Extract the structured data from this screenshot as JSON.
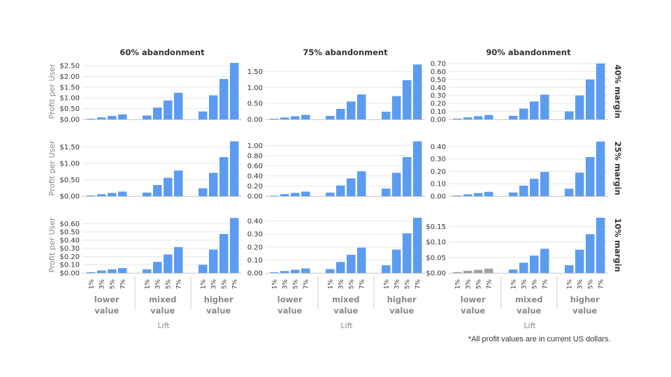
{
  "colors": {
    "bar": "#5b9cf0",
    "bar_gray": "#a0a0a0",
    "grid": "#e6e6e6",
    "axis_text": "#333333",
    "label_text": "#888888"
  },
  "ylabel": "Profit per User",
  "xlabel": "Lift",
  "footnote": "*All profit values are in current US dollars.",
  "chart_data": {
    "type": "bar",
    "layout": "3x3 facet grid",
    "columns": [
      "60% abandonment",
      "75% abandonment",
      "90% abandonment"
    ],
    "rows": [
      "40% margin",
      "25% margin",
      "10% margin"
    ],
    "groups": [
      "lower value",
      "mixed value",
      "higher value"
    ],
    "categories": [
      "1%",
      "3%",
      "5%",
      "7%"
    ],
    "xlabel": "Lift",
    "ylabel": "Profit per User",
    "panels": [
      {
        "row": 0,
        "col": 0,
        "ylim": [
          0,
          2.6
        ],
        "ticks": [
          "$0.00",
          "$0.50",
          "$1.00",
          "$1.50",
          "$2.00",
          "$2.50"
        ],
        "tick_values": [
          0,
          0.5,
          1,
          1.5,
          2,
          2.5
        ],
        "values": [
          [
            0.03,
            0.09,
            0.16,
            0.23
          ],
          [
            0.18,
            0.55,
            0.88,
            1.24
          ],
          [
            0.37,
            1.12,
            1.88,
            2.63
          ]
        ]
      },
      {
        "row": 0,
        "col": 1,
        "ylim": [
          0,
          1.75
        ],
        "ticks": [
          "0.00",
          "0.50",
          "1.00",
          "1.50"
        ],
        "tick_values": [
          0,
          0.5,
          1,
          1.5
        ],
        "values": [
          [
            0.02,
            0.06,
            0.1,
            0.14
          ],
          [
            0.11,
            0.33,
            0.56,
            0.78
          ],
          [
            0.24,
            0.73,
            1.23,
            1.72
          ]
        ]
      },
      {
        "row": 0,
        "col": 2,
        "ylim": [
          0,
          0.7
        ],
        "ticks": [
          "0.00",
          "0.10",
          "0.20",
          "0.30",
          "0.40",
          "0.50",
          "0.60",
          "0.70"
        ],
        "tick_values": [
          0,
          0.1,
          0.2,
          0.3,
          0.4,
          0.5,
          0.6,
          0.7
        ],
        "values": [
          [
            0.01,
            0.025,
            0.04,
            0.055
          ],
          [
            0.045,
            0.135,
            0.225,
            0.31
          ],
          [
            0.1,
            0.3,
            0.5,
            0.7
          ]
        ]
      },
      {
        "row": 1,
        "col": 0,
        "ylim": [
          0,
          1.7
        ],
        "ticks": [
          "$0.00",
          "$0.50",
          "$1.00",
          "$1.50"
        ],
        "tick_values": [
          0,
          0.5,
          1,
          1.5
        ],
        "values": [
          [
            0.02,
            0.06,
            0.1,
            0.14
          ],
          [
            0.11,
            0.34,
            0.56,
            0.78
          ],
          [
            0.24,
            0.71,
            1.19,
            1.67
          ]
        ]
      },
      {
        "row": 1,
        "col": 1,
        "ylim": [
          0,
          1.1
        ],
        "ticks": [
          "0.00",
          "0.20",
          "0.40",
          "0.60",
          "0.80",
          "1.00"
        ],
        "tick_values": [
          0,
          0.2,
          0.4,
          0.6,
          0.8,
          1
        ],
        "values": [
          [
            0.01,
            0.04,
            0.065,
            0.09
          ],
          [
            0.07,
            0.21,
            0.35,
            0.49
          ],
          [
            0.15,
            0.46,
            0.77,
            1.08
          ]
        ]
      },
      {
        "row": 1,
        "col": 2,
        "ylim": [
          0,
          0.45
        ],
        "ticks": [
          "0.00",
          "0.10",
          "0.20",
          "0.30",
          "0.40"
        ],
        "tick_values": [
          0,
          0.1,
          0.2,
          0.3,
          0.4
        ],
        "values": [
          [
            0.005,
            0.015,
            0.025,
            0.035
          ],
          [
            0.03,
            0.085,
            0.14,
            0.195
          ],
          [
            0.06,
            0.19,
            0.315,
            0.44
          ]
        ]
      },
      {
        "row": 2,
        "col": 0,
        "ylim": [
          0,
          0.68
        ],
        "ticks": [
          "$0.00",
          "$0.10",
          "$0.20",
          "$0.30",
          "$0.40",
          "$0.50",
          "$0.60"
        ],
        "tick_values": [
          0,
          0.1,
          0.2,
          0.3,
          0.4,
          0.5,
          0.6
        ],
        "values": [
          [
            0.01,
            0.03,
            0.045,
            0.06
          ],
          [
            0.045,
            0.135,
            0.225,
            0.315
          ],
          [
            0.1,
            0.285,
            0.475,
            0.67
          ]
        ]
      },
      {
        "row": 2,
        "col": 1,
        "ylim": [
          0,
          0.43
        ],
        "ticks": [
          "0.00",
          "0.10",
          "0.20",
          "0.30",
          "0.40"
        ],
        "tick_values": [
          0,
          0.1,
          0.2,
          0.3,
          0.4
        ],
        "values": [
          [
            0.005,
            0.015,
            0.025,
            0.035
          ],
          [
            0.03,
            0.085,
            0.14,
            0.195
          ],
          [
            0.06,
            0.18,
            0.305,
            0.425
          ]
        ]
      },
      {
        "row": 2,
        "col": 2,
        "ylim": [
          0,
          0.18
        ],
        "ticks": [
          "$0.00",
          "$0.05",
          "$0.10",
          "$0.15"
        ],
        "tick_values": [
          0,
          0.05,
          0.1,
          0.15
        ],
        "values": [
          [
            0.003,
            0.007,
            0.01,
            0.014
          ],
          [
            0.011,
            0.033,
            0.056,
            0.078
          ],
          [
            0.025,
            0.075,
            0.125,
            0.178
          ]
        ],
        "gray_group": 0
      }
    ]
  }
}
